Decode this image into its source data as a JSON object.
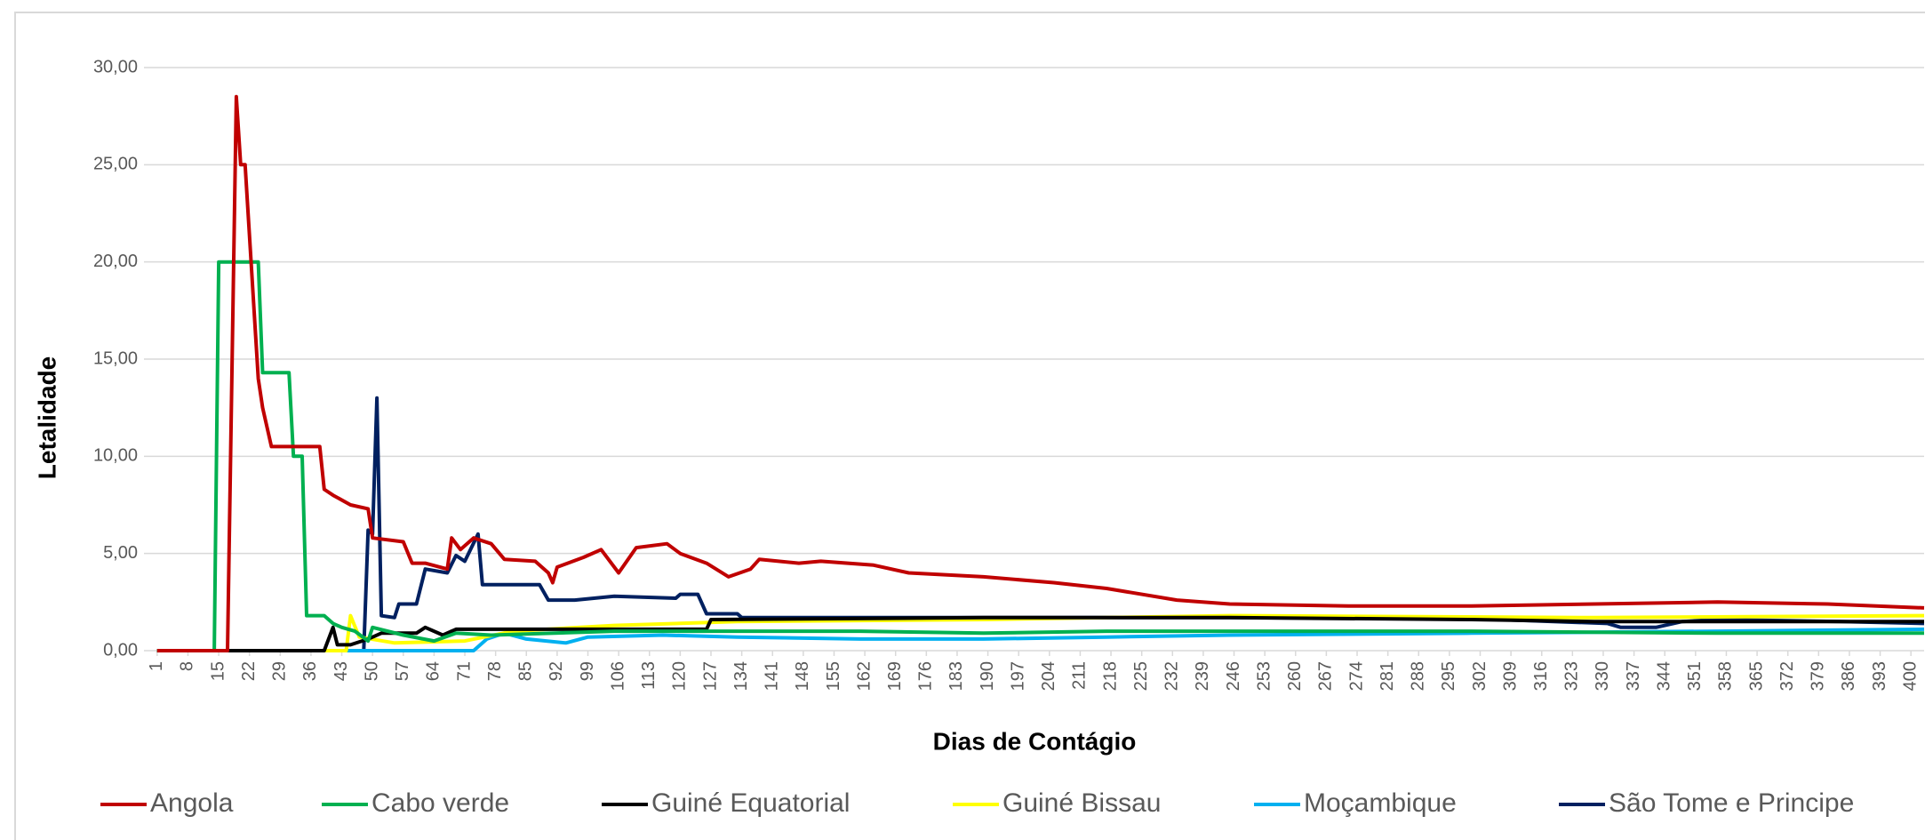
{
  "chart_data": {
    "type": "line",
    "xlabel": "Dias de Contágio",
    "ylabel": "Letalidade",
    "xlim": [
      -2,
      403
    ],
    "ylim": [
      0,
      30
    ],
    "xticks": [
      1,
      8,
      15,
      22,
      29,
      36,
      43,
      50,
      57,
      64,
      71,
      78,
      85,
      92,
      99,
      106,
      113,
      120,
      127,
      134,
      141,
      148,
      155,
      162,
      169,
      176,
      183,
      190,
      197,
      204,
      211,
      218,
      225,
      232,
      239,
      246,
      253,
      260,
      267,
      274,
      281,
      288,
      295,
      302,
      309,
      316,
      323,
      330,
      337,
      344,
      351,
      358,
      365,
      372,
      379,
      386,
      393,
      400
    ],
    "yticks": [
      {
        "value": 0,
        "label": "0,00"
      },
      {
        "value": 5,
        "label": "5,00"
      },
      {
        "value": 10,
        "label": "10,00"
      },
      {
        "value": 15,
        "label": "15,00"
      },
      {
        "value": 20,
        "label": "20,00"
      },
      {
        "value": 25,
        "label": "25,00"
      },
      {
        "value": 30,
        "label": "30,00"
      }
    ],
    "grid": true,
    "legend": "bottom",
    "series": [
      {
        "name": "Angola",
        "color": "#c00000",
        "x": [
          1,
          17,
          19,
          20,
          21,
          24,
          25,
          27,
          38,
          39,
          41,
          45,
          49,
          50,
          57,
          59,
          62,
          67,
          68,
          70,
          73,
          77,
          80,
          87,
          90,
          91,
          92,
          98,
          102,
          106,
          110,
          117,
          120,
          126,
          131,
          136,
          138,
          147,
          152,
          164,
          172,
          189,
          205,
          217,
          233,
          245,
          272,
          300,
          328,
          356,
          381,
          403
        ],
        "values": [
          0,
          0,
          28.5,
          25,
          25,
          14,
          12.5,
          10.5,
          10.5,
          8.3,
          8,
          7.5,
          7.3,
          5.8,
          5.6,
          4.5,
          4.5,
          4.2,
          5.8,
          5.2,
          5.8,
          5.5,
          4.7,
          4.6,
          4,
          3.5,
          4.3,
          4.8,
          5.2,
          4,
          5.3,
          5.5,
          5,
          4.5,
          3.8,
          4.2,
          4.7,
          4.5,
          4.6,
          4.4,
          4,
          3.8,
          3.5,
          3.2,
          2.6,
          2.4,
          2.3,
          2.3,
          2.4,
          2.5,
          2.4,
          2.2
        ]
      },
      {
        "name": "Cabo verde",
        "color": "#00b050",
        "x": [
          1,
          14,
          15,
          24,
          25,
          31,
          32,
          34,
          35,
          39,
          41,
          43,
          46,
          49,
          50,
          57,
          64,
          69,
          77,
          105,
          133,
          161,
          189,
          217,
          245,
          300,
          356,
          403
        ],
        "values": [
          0,
          0,
          20,
          20,
          14.3,
          14.3,
          10,
          10,
          1.8,
          1.8,
          1.4,
          1.2,
          1,
          0.5,
          1.2,
          0.8,
          0.5,
          0.9,
          0.8,
          1,
          1,
          1,
          0.9,
          1,
          1,
          1,
          0.9,
          0.9
        ]
      },
      {
        "name": "Guiné Equatorial",
        "color": "#000000",
        "x": [
          1,
          39,
          41,
          42,
          45,
          49,
          52,
          60,
          62,
          66,
          69,
          105,
          126,
          127,
          189,
          245,
          300,
          328,
          356,
          403
        ],
        "values": [
          0,
          0,
          1.2,
          0.3,
          0.3,
          0.6,
          0.9,
          0.9,
          1.2,
          0.8,
          1.1,
          1.1,
          1.1,
          1.6,
          1.7,
          1.7,
          1.6,
          1.5,
          1.5,
          1.5
        ]
      },
      {
        "name": "Guiné Bissau",
        "color": "#ffff00",
        "x": [
          1,
          44,
          45,
          47,
          55,
          71,
          82,
          105,
          133,
          189,
          245,
          328,
          403
        ],
        "values": [
          0,
          0,
          1.8,
          0.7,
          0.4,
          0.5,
          1,
          1.3,
          1.5,
          1.6,
          1.8,
          1.7,
          1.8
        ]
      },
      {
        "name": "Moçambique",
        "color": "#00b0f0",
        "x": [
          1,
          73,
          76,
          80,
          85,
          94,
          99,
          116,
          133,
          161,
          189,
          217,
          245,
          300,
          356,
          403
        ],
        "values": [
          0,
          0,
          0.6,
          0.9,
          0.6,
          0.4,
          0.7,
          0.8,
          0.7,
          0.6,
          0.6,
          0.7,
          0.8,
          0.9,
          1,
          1.1
        ]
      },
      {
        "name": "São Tome e Principe",
        "color": "#002060",
        "x": [
          1,
          48,
          49,
          50,
          51,
          52,
          55,
          56,
          60,
          62,
          67,
          69,
          71,
          74,
          75,
          88,
          90,
          96,
          105,
          119,
          120,
          124,
          126,
          133,
          134,
          189,
          245,
          300,
          331,
          334,
          342,
          348,
          356,
          384,
          403
        ],
        "values": [
          0,
          0,
          6.2,
          6,
          13,
          1.8,
          1.7,
          2.4,
          2.4,
          4.2,
          4,
          4.9,
          4.6,
          6,
          3.4,
          3.4,
          2.6,
          2.6,
          2.8,
          2.7,
          2.9,
          2.9,
          1.9,
          1.9,
          1.7,
          1.7,
          1.7,
          1.65,
          1.4,
          1.2,
          1.2,
          1.5,
          1.6,
          1.5,
          1.4
        ]
      }
    ]
  }
}
